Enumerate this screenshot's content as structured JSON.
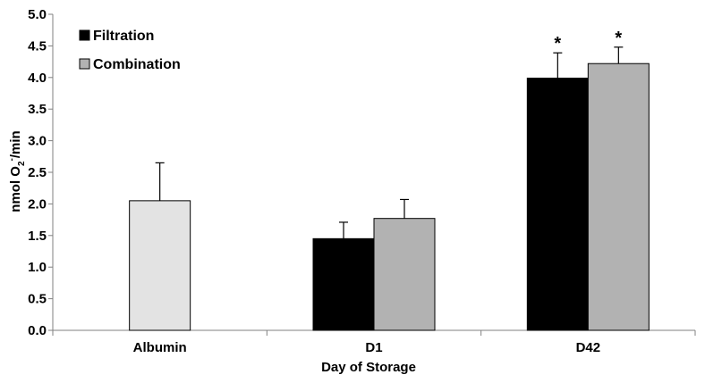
{
  "chart_data": {
    "type": "bar",
    "categories": [
      "Albumin",
      "D1",
      "D42"
    ],
    "xlabel": "Day of Storage",
    "ylabel": {
      "main": "nmol O",
      "sub": "2",
      "sup": "-",
      "rest": "/min"
    },
    "ylim": [
      0,
      5.0
    ],
    "yticks": [
      "0.0",
      "0.5",
      "1.0",
      "1.5",
      "2.0",
      "2.5",
      "3.0",
      "3.5",
      "4.0",
      "4.5",
      "5.0"
    ],
    "grid": false,
    "legend_position": "top-left",
    "significance_marker": "*",
    "series": [
      {
        "name": "",
        "color": "#e3e3e3",
        "values": [
          2.05,
          null,
          null
        ],
        "errors": [
          0.6,
          null,
          null
        ],
        "significance": [
          false,
          false,
          false
        ]
      },
      {
        "name": "Filtration",
        "color": "#000000",
        "values": [
          null,
          1.45,
          3.99
        ],
        "errors": [
          null,
          0.26,
          0.4
        ],
        "significance": [
          false,
          false,
          true
        ]
      },
      {
        "name": "Combination",
        "color": "#b2b2b2",
        "values": [
          null,
          1.77,
          4.22
        ],
        "errors": [
          null,
          0.3,
          0.26
        ],
        "significance": [
          false,
          false,
          true
        ]
      }
    ],
    "legend": [
      {
        "label": "Filtration",
        "color": "#000000"
      },
      {
        "label": "Combination",
        "color": "#b2b2b2"
      }
    ]
  }
}
